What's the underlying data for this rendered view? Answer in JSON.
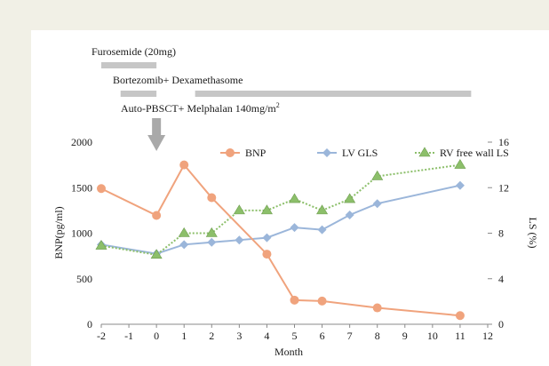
{
  "treatments": [
    {
      "label": "Furosemide (20mg)",
      "bars": [
        [
          -2,
          0
        ]
      ]
    },
    {
      "label": "Bortezomib+ Dexamethasome",
      "bars": [
        [
          -1.3,
          0
        ],
        [
          1.4,
          11.4
        ]
      ]
    },
    {
      "label": "Auto-PBSCT+ Melphalan 140mg/m",
      "label_sup": "2",
      "arrow_at": 0
    }
  ],
  "chart_data": {
    "type": "line",
    "x": [
      -2,
      0,
      1,
      2,
      3,
      4,
      5,
      6,
      7,
      8,
      11
    ],
    "xlabel": "Month",
    "ylabel": "BNP(pg/ml)",
    "y2label": "LS (%)",
    "xlim": [
      -2,
      12
    ],
    "ylim": [
      0,
      2000
    ],
    "y2lim": [
      0,
      16
    ],
    "xticks": [
      "-2",
      "-1",
      "0",
      "1",
      "2",
      "3",
      "4",
      "5",
      "6",
      "7",
      "8",
      "9",
      "10",
      "11",
      "12"
    ],
    "yticks": [
      "0",
      "500",
      "1000",
      "1500",
      "2000"
    ],
    "y2ticks": [
      "0",
      "4",
      "8",
      "12",
      "16"
    ],
    "legend_position": "top-right",
    "grid": false,
    "series": [
      {
        "name": "BNP",
        "axis": "left",
        "color": "#f0a37d",
        "marker": "circle",
        "style": "solid",
        "values": [
          1490,
          1195,
          1750,
          1390,
          null,
          770,
          265,
          255,
          null,
          180,
          95
        ]
      },
      {
        "name": "LV GLS",
        "axis": "right",
        "color": "#9bb6da",
        "marker": "diamond",
        "style": "solid",
        "values": [
          7,
          6.2,
          7,
          7.2,
          7.4,
          7.6,
          8.5,
          8.3,
          9.6,
          10.6,
          12.2
        ]
      },
      {
        "name": "RV free wall LS",
        "axis": "right",
        "color": "#8cbf6a",
        "marker": "triangle",
        "style": "dotted",
        "values": [
          6.9,
          6.1,
          8,
          8,
          10,
          10,
          11,
          10,
          11,
          13,
          14
        ]
      }
    ]
  }
}
